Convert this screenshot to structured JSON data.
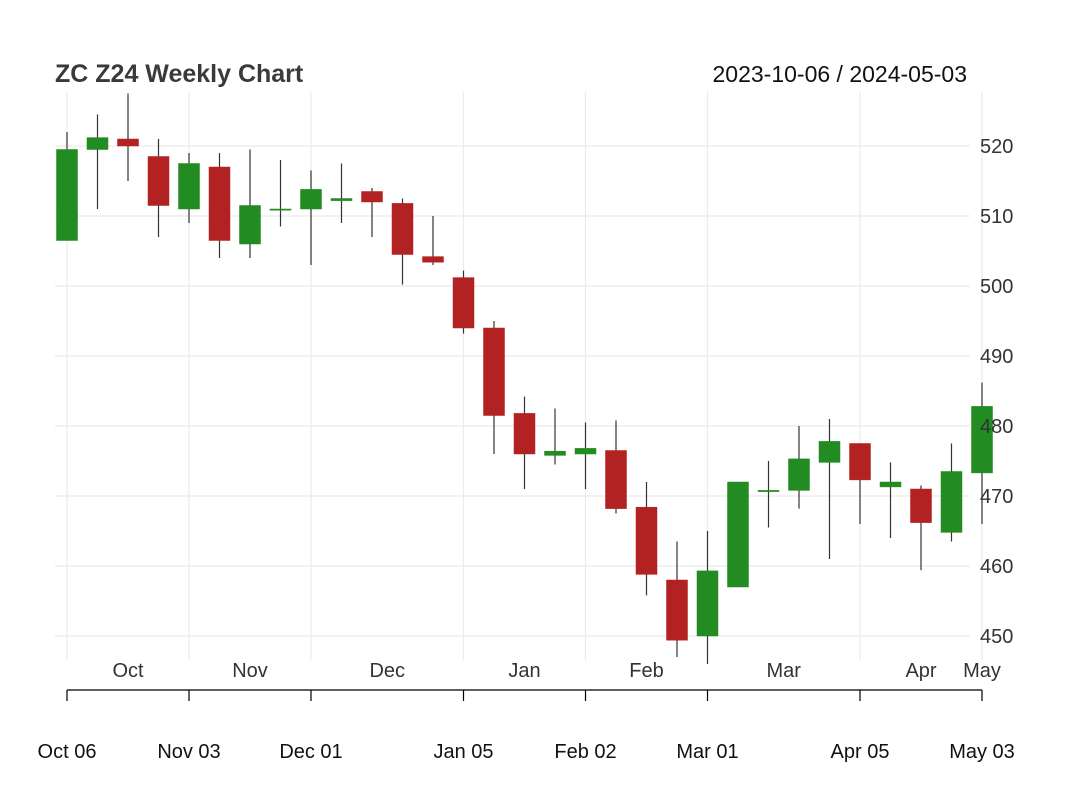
{
  "chart_data": {
    "type": "candlestick",
    "title": "ZC Z24 Weekly Chart",
    "date_range": "2023-10-06 / 2024-05-03",
    "y_axis": {
      "ticks": [
        450,
        460,
        470,
        480,
        490,
        500,
        510,
        520
      ],
      "ylim": [
        446,
        528
      ],
      "position": "right"
    },
    "month_labels": [
      {
        "label": "Oct",
        "week": 2
      },
      {
        "label": "Nov",
        "week": 6
      },
      {
        "label": "Dec",
        "week": 10.5
      },
      {
        "label": "Jan",
        "week": 15
      },
      {
        "label": "Feb",
        "week": 19
      },
      {
        "label": "Mar",
        "week": 23.5
      },
      {
        "label": "Apr",
        "week": 28
      },
      {
        "label": "May",
        "week": 30
      }
    ],
    "month_gridlines": [
      0,
      4,
      8,
      13,
      17,
      21,
      26,
      30
    ],
    "x_axis_labels": [
      {
        "label": "Oct 06",
        "week": 0
      },
      {
        "label": "Nov 03",
        "week": 4
      },
      {
        "label": "Dec 01",
        "week": 8
      },
      {
        "label": "Jan 05",
        "week": 13
      },
      {
        "label": "Feb 02",
        "week": 17
      },
      {
        "label": "Mar 01",
        "week": 21
      },
      {
        "label": "Apr 05",
        "week": 26
      },
      {
        "label": "May 03",
        "week": 30
      }
    ],
    "colors": {
      "up": "#228b22",
      "down": "#b22222",
      "grid": "#ebebeb",
      "axis": "#000000"
    },
    "candles": [
      {
        "open": 506.5,
        "high": 522.0,
        "low": 506.5,
        "close": 519.5
      },
      {
        "open": 519.5,
        "high": 524.5,
        "low": 511.0,
        "close": 521.2
      },
      {
        "open": 521.0,
        "high": 527.5,
        "low": 515.0,
        "close": 520.0
      },
      {
        "open": 518.5,
        "high": 521.0,
        "low": 507.0,
        "close": 511.5
      },
      {
        "open": 511.0,
        "high": 519.0,
        "low": 509.0,
        "close": 517.5
      },
      {
        "open": 517.0,
        "high": 519.0,
        "low": 504.0,
        "close": 506.5
      },
      {
        "open": 506.0,
        "high": 519.5,
        "low": 504.0,
        "close": 511.5
      },
      {
        "open": 511.0,
        "high": 518.0,
        "low": 508.5,
        "close": 511.0
      },
      {
        "open": 511.0,
        "high": 516.5,
        "low": 503.0,
        "close": 513.8
      },
      {
        "open": 512.2,
        "high": 517.5,
        "low": 509.0,
        "close": 512.5
      },
      {
        "open": 513.5,
        "high": 514.0,
        "low": 507.0,
        "close": 512.0
      },
      {
        "open": 511.8,
        "high": 512.5,
        "low": 500.2,
        "close": 504.5
      },
      {
        "open": 504.2,
        "high": 510.0,
        "low": 503.0,
        "close": 503.4
      },
      {
        "open": 501.2,
        "high": 502.2,
        "low": 493.2,
        "close": 494.0
      },
      {
        "open": 494.0,
        "high": 495.0,
        "low": 476.0,
        "close": 481.5
      },
      {
        "open": 481.8,
        "high": 484.2,
        "low": 471.0,
        "close": 476.0
      },
      {
        "open": 475.8,
        "high": 482.5,
        "low": 474.5,
        "close": 476.4
      },
      {
        "open": 476.0,
        "high": 480.5,
        "low": 471.0,
        "close": 476.8
      },
      {
        "open": 476.5,
        "high": 480.8,
        "low": 467.5,
        "close": 468.2
      },
      {
        "open": 468.4,
        "high": 472.0,
        "low": 455.8,
        "close": 458.8
      },
      {
        "open": 458.0,
        "high": 463.5,
        "low": 447.0,
        "close": 449.4
      },
      {
        "open": 450.0,
        "high": 465.0,
        "low": 446.0,
        "close": 459.3
      },
      {
        "open": 457.0,
        "high": 472.0,
        "low": 457.0,
        "close": 472.0
      },
      {
        "open": 470.8,
        "high": 475.0,
        "low": 465.5,
        "close": 470.8
      },
      {
        "open": 470.8,
        "high": 480.0,
        "low": 468.2,
        "close": 475.3
      },
      {
        "open": 474.8,
        "high": 481.0,
        "low": 461.0,
        "close": 477.8
      },
      {
        "open": 477.5,
        "high": 477.5,
        "low": 466.0,
        "close": 472.3
      },
      {
        "open": 471.3,
        "high": 474.8,
        "low": 464.0,
        "close": 472.0
      },
      {
        "open": 471.0,
        "high": 471.5,
        "low": 459.4,
        "close": 466.2
      },
      {
        "open": 464.8,
        "high": 477.5,
        "low": 463.5,
        "close": 473.5
      },
      {
        "open": 473.3,
        "high": 486.2,
        "low": 466.0,
        "close": 482.8
      }
    ]
  }
}
